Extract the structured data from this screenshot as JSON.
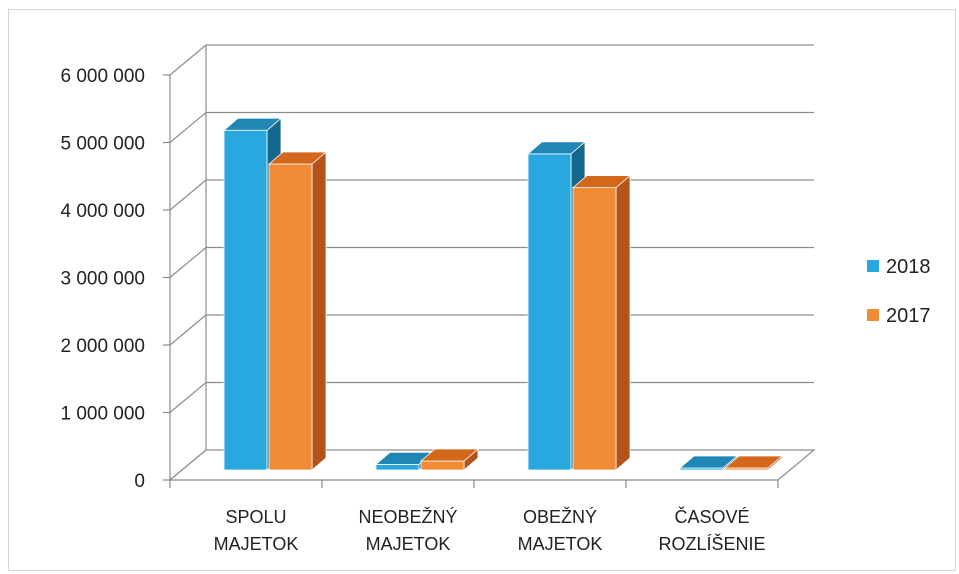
{
  "chart_data": {
    "type": "bar",
    "style": "3d-clustered-column",
    "categories": [
      [
        "SPOLU",
        "MAJETOK"
      ],
      [
        "NEOBEŽNÝ",
        "MAJETOK"
      ],
      [
        "OBEŽNÝ",
        "MAJETOK"
      ],
      [
        "ČASOVÉ",
        "ROZLÍŠENIE"
      ]
    ],
    "series": [
      {
        "name": "2018",
        "values": [
          5300000,
          350000,
          4950000,
          12000
        ],
        "color": "#29a8e0",
        "top": "#1f86b5",
        "side": "#15678c"
      },
      {
        "name": "2017",
        "values": [
          4800000,
          400000,
          4450000,
          10000
        ],
        "color": "#f08a35",
        "top": "#d3671c",
        "side": "#b3541a"
      }
    ],
    "ylim": [
      0,
      6000000
    ],
    "yticks": [
      "0",
      "1 000 000",
      "2 000 000",
      "3 000 000",
      "4 000 000",
      "5 000 000",
      "6 000 000"
    ],
    "grid": true,
    "legend_position": "right"
  }
}
